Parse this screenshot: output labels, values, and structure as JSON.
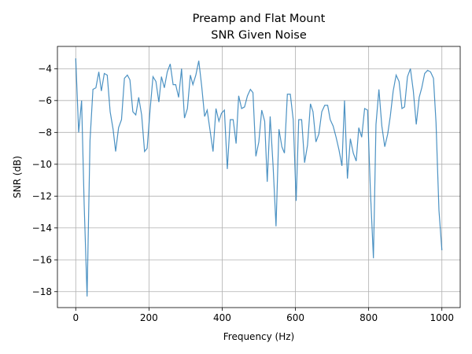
{
  "chart_data": {
    "type": "line",
    "title": [
      "Preamp and Flat Mount",
      "SNR Given Noise"
    ],
    "xlabel": "Frequency (Hz)",
    "ylabel": "SNR (dB)",
    "color": "#1f77b4",
    "grid": true,
    "xlim": [
      -50,
      1050
    ],
    "xticks": [
      0,
      200,
      400,
      600,
      800,
      1000
    ],
    "ylim": [
      -19,
      -2.6
    ],
    "yticks": [
      {
        "value": -18,
        "label": "−18"
      },
      {
        "value": -16,
        "label": "−16"
      },
      {
        "value": -14,
        "label": "−14"
      },
      {
        "value": -12,
        "label": "−12"
      },
      {
        "value": -10,
        "label": "−10"
      },
      {
        "value": -8,
        "label": "−8"
      },
      {
        "value": -6,
        "label": "−6"
      },
      {
        "value": -4,
        "label": "−4"
      }
    ],
    "x": [
      0,
      8,
      16,
      23,
      31,
      39,
      47,
      55,
      63,
      70,
      78,
      86,
      94,
      102,
      109,
      117,
      125,
      133,
      141,
      148,
      156,
      164,
      172,
      180,
      188,
      195,
      203,
      211,
      219,
      227,
      234,
      242,
      250,
      258,
      266,
      273,
      281,
      289,
      297,
      305,
      313,
      320,
      328,
      336,
      344,
      352,
      359,
      367,
      375,
      383,
      391,
      398,
      406,
      414,
      422,
      430,
      438,
      445,
      453,
      461,
      469,
      477,
      484,
      492,
      500,
      508,
      516,
      523,
      531,
      539,
      547,
      555,
      563,
      570,
      578,
      586,
      594,
      602,
      609,
      617,
      625,
      633,
      641,
      648,
      656,
      664,
      672,
      680,
      688,
      695,
      703,
      711,
      719,
      727,
      734,
      742,
      750,
      758,
      766,
      773,
      781,
      789,
      797,
      805,
      813,
      820,
      828,
      836,
      844,
      852,
      859,
      867,
      875,
      883,
      891,
      898,
      906,
      914,
      922,
      930,
      938,
      945,
      953,
      961,
      969,
      977,
      984,
      992,
      1000
    ],
    "values": [
      -3.35,
      -8.0,
      -6.0,
      -12.5,
      -18.3,
      -8.5,
      -5.3,
      -5.2,
      -4.2,
      -5.4,
      -4.3,
      -4.4,
      -6.7,
      -7.8,
      -9.2,
      -7.7,
      -7.2,
      -4.6,
      -4.4,
      -4.7,
      -6.7,
      -6.9,
      -5.8,
      -6.9,
      -9.2,
      -9.0,
      -6.6,
      -4.5,
      -4.8,
      -6.1,
      -4.5,
      -5.2,
      -4.2,
      -3.7,
      -5.0,
      -5.0,
      -5.8,
      -4.0,
      -7.1,
      -6.5,
      -4.4,
      -5.0,
      -4.4,
      -3.5,
      -5.1,
      -7.0,
      -6.6,
      -7.9,
      -9.2,
      -6.5,
      -7.3,
      -6.8,
      -6.6,
      -10.3,
      -7.2,
      -7.2,
      -8.7,
      -5.7,
      -6.5,
      -6.4,
      -5.7,
      -5.3,
      -5.5,
      -9.5,
      -8.6,
      -6.6,
      -7.3,
      -11.1,
      -7.0,
      -10.1,
      -13.9,
      -7.8,
      -8.9,
      -9.3,
      -5.6,
      -5.6,
      -7.2,
      -12.3,
      -7.2,
      -7.2,
      -9.9,
      -8.8,
      -6.2,
      -6.7,
      -8.6,
      -8.1,
      -6.7,
      -6.3,
      -6.3,
      -7.2,
      -7.6,
      -8.3,
      -9.1,
      -10.1,
      -6.0,
      -10.9,
      -8.4,
      -9.3,
      -9.8,
      -7.7,
      -8.3,
      -6.5,
      -6.6,
      -11.8,
      -15.9,
      -7.5,
      -5.3,
      -7.6,
      -8.9,
      -8.1,
      -7.0,
      -5.4,
      -4.4,
      -4.8,
      -6.5,
      -6.4,
      -4.5,
      -4.0,
      -5.4,
      -7.5,
      -5.8,
      -5.2,
      -4.3,
      -4.1,
      -4.2,
      -4.6,
      -7.4,
      -12.9,
      -15.4
    ]
  }
}
